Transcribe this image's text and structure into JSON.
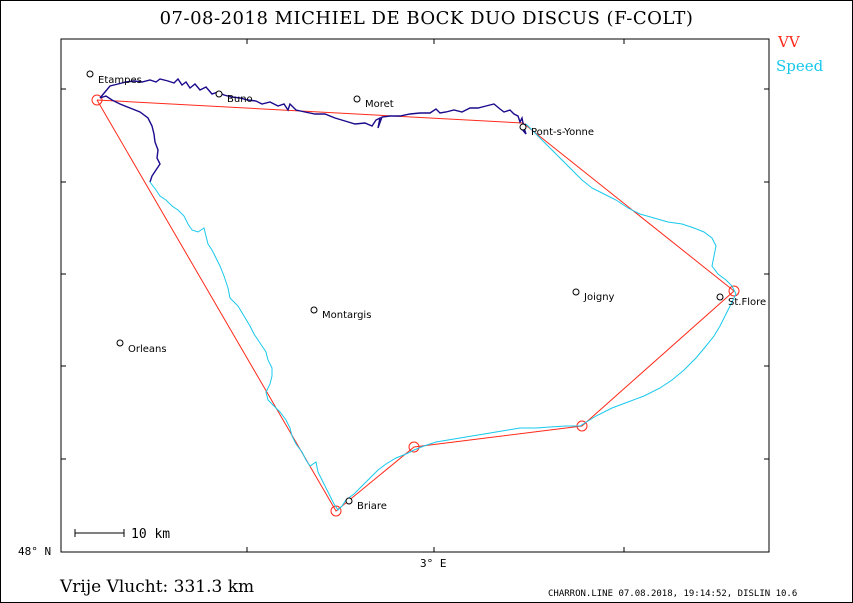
{
  "title": "07-08-2018   MICHIEL DE BOCK   DUO DISCUS (F-COLT)",
  "legend": {
    "vv_label": "VV",
    "speed_label": "Speed",
    "vv_color": "#ff2a1a",
    "speed_color": "#18c8ec"
  },
  "distance_text": "Vrije Vlucht:  331.3 km",
  "footer_text": "CHARRON.LINE 07.08.2018, 19:14:52, DISLIN 10.6",
  "axes": {
    "lat_label": "48° N",
    "lon_label": "3° E"
  },
  "scale": {
    "label": "10 km"
  },
  "towns": [
    "Etampes",
    "Buno",
    "Moret",
    "Pont-s-Yonne",
    "Joigny",
    "St.Flore",
    "Montargis",
    "Orleans",
    "Briare"
  ]
}
